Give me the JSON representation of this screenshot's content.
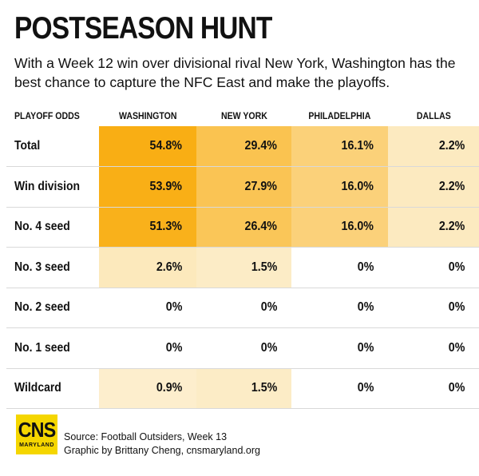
{
  "title": "POSTSEASON HUNT",
  "subtitle": "With a Week 12 win over divisional rival New York, Washington has the best chance to capture the NFC East and make the playoffs.",
  "colors": {
    "heat_low": "#fdf6e3",
    "heat_high": "#f9ae14"
  },
  "chart_data": {
    "type": "table",
    "header_label": "PLAYOFF ODDS",
    "columns": [
      "WASHINGTON",
      "NEW YORK",
      "PHILADELPHIA",
      "DALLAS"
    ],
    "rows": [
      {
        "label": "Total",
        "values": [
          54.8,
          29.4,
          16.1,
          2.2
        ],
        "display": [
          "54.8%",
          "29.4%",
          "16.1%",
          "2.2%"
        ]
      },
      {
        "label": "Win division",
        "values": [
          53.9,
          27.9,
          16.0,
          2.2
        ],
        "display": [
          "53.9%",
          "27.9%",
          "16.0%",
          "2.2%"
        ]
      },
      {
        "label": "No. 4 seed",
        "values": [
          51.3,
          26.4,
          16.0,
          2.2
        ],
        "display": [
          "51.3%",
          "26.4%",
          "16.0%",
          "2.2%"
        ]
      },
      {
        "label": "No. 3 seed",
        "values": [
          2.6,
          1.5,
          0,
          0
        ],
        "display": [
          "2.6%",
          "1.5%",
          "0%",
          "0%"
        ]
      },
      {
        "label": "No. 2 seed",
        "values": [
          0,
          0,
          0,
          0
        ],
        "display": [
          "0%",
          "0%",
          "0%",
          "0%"
        ]
      },
      {
        "label": "No. 1 seed",
        "values": [
          0,
          0,
          0,
          0
        ],
        "display": [
          "0%",
          "0%",
          "0%",
          "0%"
        ]
      },
      {
        "label": "Wildcard",
        "values": [
          0.9,
          1.5,
          0,
          0
        ],
        "display": [
          "0.9%",
          "1.5%",
          "0%",
          "0%"
        ]
      }
    ]
  },
  "logo": {
    "main": "CNS",
    "sub": "MARYLAND"
  },
  "credits": {
    "source": "Source: Football Outsiders, Week 13",
    "byline": "Graphic by Brittany Cheng, cnsmaryland.org"
  }
}
